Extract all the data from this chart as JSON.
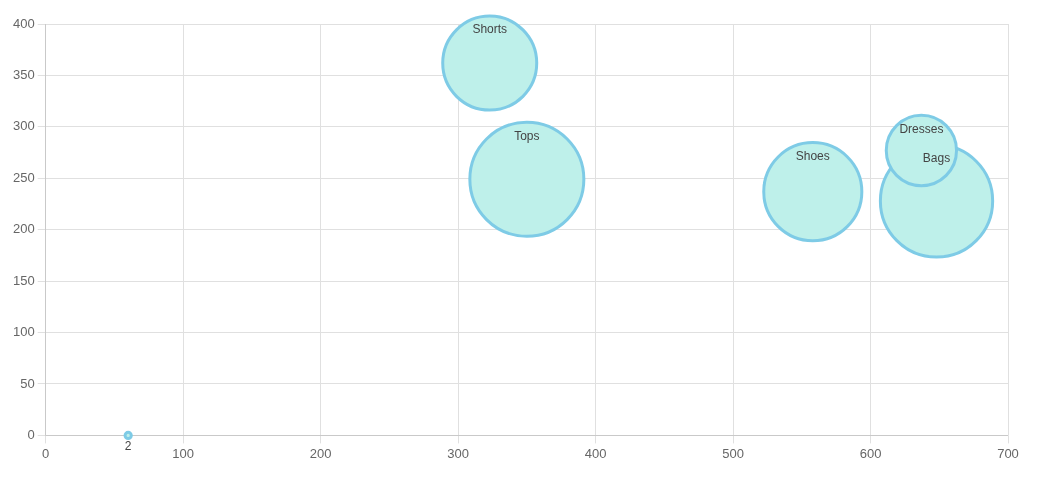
{
  "chart_data": {
    "type": "bubble",
    "series": [
      {
        "name": "2",
        "color": "#7ecbe6",
        "x": [
          60
        ],
        "values": [
          0
        ],
        "sizes": [
          0.003
        ]
      },
      {
        "name": "Shorts",
        "color": "#7ecbe6",
        "x": [
          323
        ],
        "values": [
          362
        ],
        "sizes": [
          0.68
        ]
      },
      {
        "name": "Tops",
        "color": "#7ecbe6",
        "x": [
          350
        ],
        "values": [
          249
        ],
        "sizes": [
          1
        ]
      },
      {
        "name": "Shoes",
        "color": "#7ecbe6",
        "x": [
          558
        ],
        "values": [
          237
        ],
        "sizes": [
          0.74
        ]
      },
      {
        "name": "Dresses",
        "color": "#7ecbe6",
        "x": [
          637
        ],
        "values": [
          277
        ],
        "sizes": [
          0.38
        ]
      },
      {
        "name": "Bags",
        "color": "#7ecbe6",
        "x": [
          648
        ],
        "values": [
          228
        ],
        "sizes": [
          0.97
        ]
      }
    ],
    "xlim": [
      0,
      700
    ],
    "xticks": [
      0,
      100,
      200,
      300,
      400,
      500,
      600,
      700
    ],
    "ylim": [
      0,
      400
    ],
    "yticks": [
      0,
      50,
      100,
      150,
      200,
      250,
      300,
      350,
      400
    ],
    "grid": true
  }
}
